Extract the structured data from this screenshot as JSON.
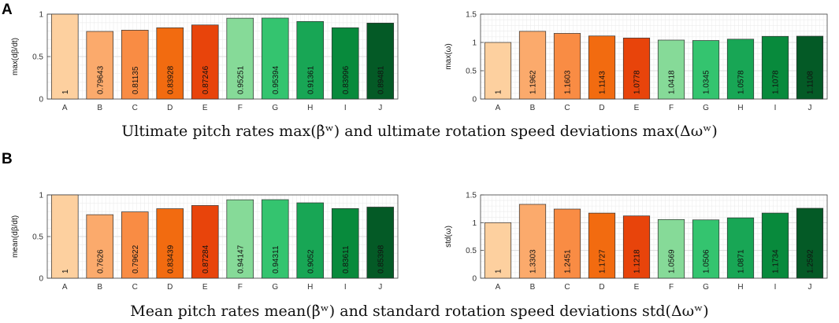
{
  "panels": [
    {
      "letter": "A",
      "caption": "Ultimate pitch rates max(β̇ʷ) and ultimate rotation speed deviations max(Δωʷ)"
    },
    {
      "letter": "B",
      "caption": "Mean pitch rates mean(β̇ʷ) and standard rotation speed deviations std(Δωʷ)"
    }
  ],
  "colors": [
    "#fdd09f",
    "#fbaa6c",
    "#f98c44",
    "#f26b10",
    "#e8440b",
    "#86da98",
    "#34c46f",
    "#18a655",
    "#088a3c",
    "#045a26"
  ],
  "chart_data": [
    {
      "type": "bar",
      "categories": [
        "A",
        "B",
        "C",
        "D",
        "E",
        "F",
        "G",
        "H",
        "I",
        "J"
      ],
      "values": [
        1,
        0.79643,
        0.81135,
        0.83928,
        0.87246,
        0.95251,
        0.95394,
        0.91361,
        0.83996,
        0.89481
      ],
      "labels": [
        "1",
        "0.79643",
        "0.81135",
        "0.83928",
        "0.87246",
        "0.95251",
        "0.95394",
        "0.91361",
        "0.83996",
        "0.89481"
      ],
      "ylabel": "max(dβ/dt)",
      "ylim": [
        0,
        1
      ],
      "yticks": [
        0,
        0.5,
        1
      ],
      "ytick_labels": [
        "0",
        "0.5",
        "1"
      ],
      "grid": true
    },
    {
      "type": "bar",
      "categories": [
        "A",
        "B",
        "C",
        "D",
        "E",
        "F",
        "G",
        "H",
        "I",
        "J"
      ],
      "values": [
        1,
        1.1962,
        1.1603,
        1.1143,
        1.0778,
        1.0418,
        1.0345,
        1.0578,
        1.1078,
        1.1108
      ],
      "labels": [
        "1",
        "1.1962",
        "1.1603",
        "1.1143",
        "1.0778",
        "1.0418",
        "1.0345",
        "1.0578",
        "1.1078",
        "1.1108"
      ],
      "ylabel": "max(ω)",
      "ylim": [
        0,
        1.5
      ],
      "yticks": [
        0,
        0.5,
        1,
        1.5
      ],
      "ytick_labels": [
        "0",
        "0.5",
        "1",
        "1.5"
      ],
      "grid": true
    },
    {
      "type": "bar",
      "categories": [
        "A",
        "B",
        "C",
        "D",
        "E",
        "F",
        "G",
        "H",
        "I",
        "J"
      ],
      "values": [
        1,
        0.7626,
        0.79622,
        0.83439,
        0.87284,
        0.94147,
        0.94311,
        0.9052,
        0.83611,
        0.85398
      ],
      "labels": [
        "1",
        "0.7626",
        "0.79622",
        "0.83439",
        "0.87284",
        "0.94147",
        "0.94311",
        "0.9052",
        "0.83611",
        "0.85398"
      ],
      "ylabel": "mean(dβ/dt)",
      "ylim": [
        0,
        1
      ],
      "yticks": [
        0,
        0.5,
        1
      ],
      "ytick_labels": [
        "0",
        "0.5",
        "1"
      ],
      "grid": true
    },
    {
      "type": "bar",
      "categories": [
        "A",
        "B",
        "C",
        "D",
        "E",
        "F",
        "G",
        "H",
        "I",
        "J"
      ],
      "values": [
        1,
        1.3303,
        1.2451,
        1.1727,
        1.1218,
        1.0569,
        1.0506,
        1.0871,
        1.1734,
        1.2592
      ],
      "labels": [
        "1",
        "1.3303",
        "1.2451",
        "1.1727",
        "1.1218",
        "1.0569",
        "1.0506",
        "1.0871",
        "1.1734",
        "1.2592"
      ],
      "ylabel": "std(ω)",
      "ylim": [
        0,
        1.5
      ],
      "yticks": [
        0,
        0.5,
        1,
        1.5
      ],
      "ytick_labels": [
        "0",
        "0.5",
        "1",
        "1.5"
      ],
      "grid": true
    }
  ]
}
